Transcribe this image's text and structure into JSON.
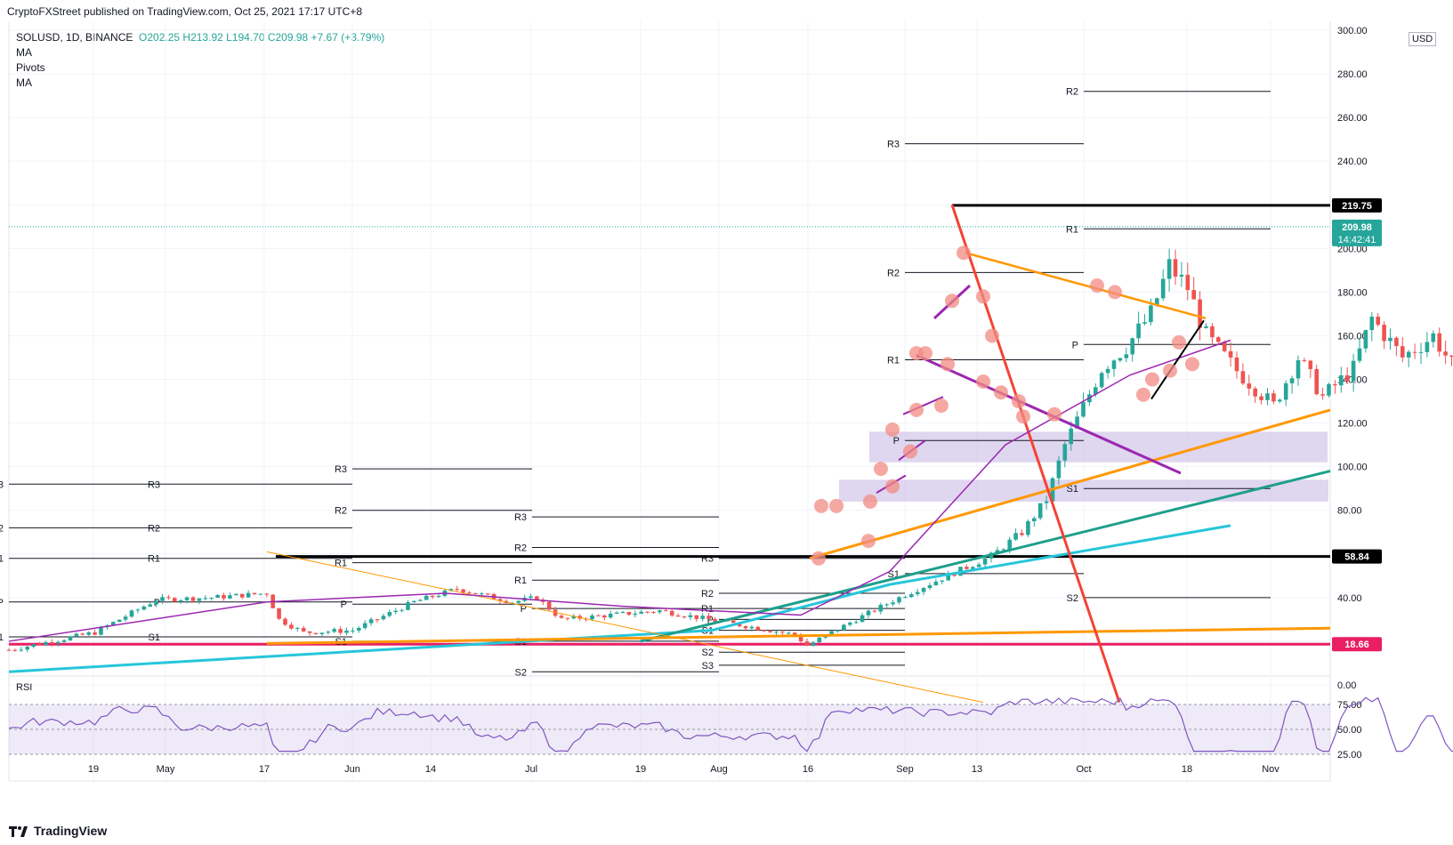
{
  "header": {
    "published": "CryptoFXStreet published on TradingView.com, Oct 25, 2021 17:17 UTC+8"
  },
  "legend": {
    "symbol": "SOLUSD, 1D, BINANCE",
    "ohlc": "O202.25  H213.92  L194.70  C209.98  +7.67 (+3.79%)",
    "indicators": [
      "MA",
      "Pivots",
      "MA"
    ]
  },
  "currency": "USD",
  "brand": "TradingView",
  "colors": {
    "up": "#26a69a",
    "down": "#ef5350",
    "orange": "#ff9800",
    "red": "#f44336",
    "teal": "#1e9f8b",
    "cyan": "#26c6da",
    "purple": "#9c27b0",
    "pink": "#e91e63",
    "band": "#d1c4e9",
    "rsi": "#7e57c2",
    "circle": "#f28b82"
  },
  "chart_data": {
    "type": "candlestick",
    "y_axis_ticks": [
      "300.00",
      "280.00",
      "260.00",
      "240.00",
      "220.00",
      "200.00",
      "180.00",
      "160.00",
      "140.00",
      "120.00",
      "100.00",
      "80.00",
      "60.00",
      "40.00",
      "20.00",
      "0.00"
    ],
    "x_axis_ticks": [
      "19",
      "May",
      "17",
      "Jun",
      "14",
      "Jul",
      "19",
      "Aug",
      "16",
      "Sep",
      "13",
      "Oct",
      "18",
      "Nov"
    ],
    "price_labels": [
      {
        "value": "219.75",
        "style": "black"
      },
      {
        "value": "209.98",
        "sub": "14:42:41",
        "style": "teal"
      },
      {
        "value": "58.84",
        "style": "black"
      },
      {
        "value": "18.66",
        "style": "pink"
      }
    ],
    "pivot_labels": [
      "R3",
      "R2",
      "R1",
      "P",
      "S1",
      "S2",
      "S3"
    ],
    "rsi": {
      "label": "RSI",
      "ticks": [
        "75.00",
        "50.00",
        "25.00"
      ]
    }
  }
}
